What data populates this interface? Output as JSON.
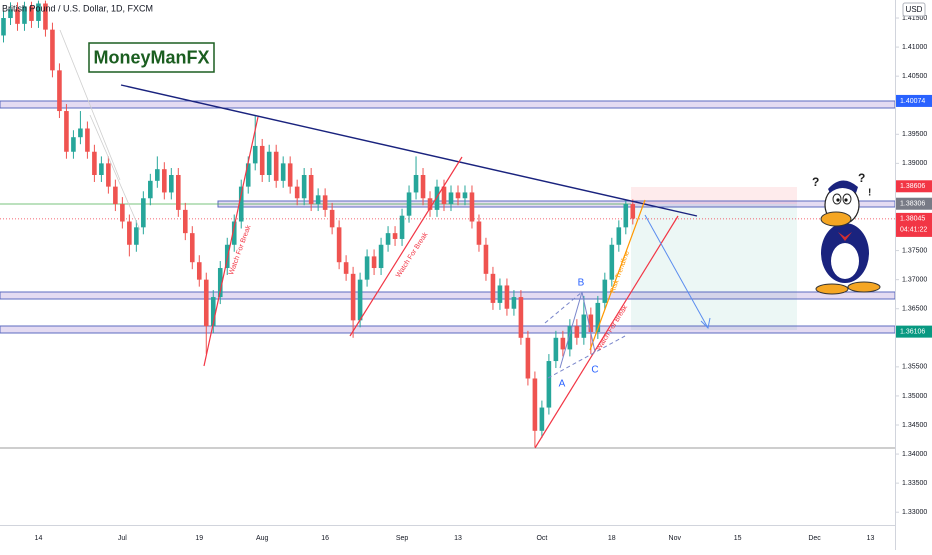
{
  "chart_data": {
    "type": "candlestick",
    "title": "British Pound / U.S. Dollar, 1D, FXCM",
    "currency": "USD",
    "logo": "MoneyManFX",
    "annotations": [
      "Watch For Break",
      "Watch For Break",
      "Watch For Break",
      "Risk Trendline",
      "A",
      "B",
      "C"
    ],
    "categories": [
      null,
      null,
      null,
      null,
      null,
      "14",
      null,
      null,
      null,
      null,
      null,
      null,
      null,
      null,
      null,
      null,
      null,
      "Jul",
      null,
      null,
      null,
      null,
      null,
      null,
      null,
      null,
      null,
      null,
      "19",
      null,
      null,
      null,
      null,
      null,
      null,
      null,
      null,
      "Aug",
      null,
      null,
      null,
      null,
      null,
      null,
      null,
      null,
      "16",
      null,
      null,
      null,
      null,
      null,
      null,
      null,
      null,
      null,
      null,
      "Sep",
      null,
      null,
      null,
      null,
      null,
      null,
      null,
      "13",
      null,
      null,
      null,
      null,
      null,
      null,
      null,
      null,
      null,
      null,
      null,
      "Oct",
      null,
      null,
      null,
      null,
      null,
      null,
      null,
      null,
      null,
      "18",
      null,
      null,
      null,
      null,
      null,
      null,
      null,
      null,
      "Nov",
      null,
      null,
      null,
      null,
      null,
      null,
      null,
      null,
      "15",
      null,
      null,
      null,
      null,
      null,
      null,
      null,
      null,
      null,
      null,
      "Dec",
      null,
      null,
      null,
      null,
      null,
      null,
      null,
      "13",
      null,
      null,
      null
    ],
    "open": [
      1.412,
      1.415,
      1.4165,
      1.414,
      1.417,
      1.4145,
      1.4175,
      1.413,
      1.406,
      1.399,
      1.392,
      1.3945,
      1.396,
      1.392,
      1.388,
      1.39,
      1.386,
      1.383,
      1.38,
      1.376,
      1.379,
      1.384,
      1.387,
      1.389,
      1.385,
      1.388,
      1.382,
      1.378,
      1.373,
      1.37,
      1.362,
      1.367,
      1.372,
      1.376,
      1.38,
      1.386,
      1.39,
      1.393,
      1.388,
      1.392,
      1.387,
      1.39,
      1.386,
      1.384,
      1.388,
      1.383,
      1.3845,
      1.382,
      1.379,
      1.373,
      1.371,
      1.363,
      1.37,
      1.374,
      1.372,
      1.376,
      1.378,
      1.377,
      1.381,
      1.385,
      1.388,
      1.384,
      1.382,
      1.386,
      1.383,
      1.385,
      1.384,
      1.385,
      1.38,
      1.376,
      1.371,
      1.366,
      1.369,
      1.365,
      1.367,
      1.36,
      1.353,
      1.344,
      1.348,
      1.356,
      1.36,
      1.358,
      1.362,
      1.36,
      1.364,
      1.361,
      1.366,
      1.37,
      1.376,
      1.379,
      1.383,
      null,
      null,
      null,
      null,
      null,
      null,
      null,
      null,
      null,
      null,
      null,
      null,
      null,
      null,
      null,
      null,
      null,
      null,
      null,
      null,
      null,
      null,
      null,
      null,
      null,
      null,
      null,
      null,
      null,
      null,
      null,
      null,
      null,
      null,
      null,
      null,
      null
    ],
    "high": [
      1.4162,
      1.4177,
      1.4177,
      1.4178,
      1.4178,
      1.418,
      1.418,
      1.4142,
      1.4072,
      1.4002,
      1.3957,
      1.399,
      1.3972,
      1.3932,
      1.3912,
      1.3912,
      1.3872,
      1.3842,
      1.3812,
      1.3802,
      1.3852,
      1.3882,
      1.3912,
      1.3902,
      1.3892,
      1.3892,
      1.3832,
      1.3792,
      1.3742,
      1.3712,
      1.3682,
      1.3732,
      1.3772,
      1.3812,
      1.3872,
      1.3912,
      1.3983,
      1.3942,
      1.3932,
      1.3932,
      1.3912,
      1.3912,
      1.3872,
      1.3892,
      1.3892,
      1.3857,
      1.3857,
      1.3832,
      1.3802,
      1.3742,
      1.3722,
      1.3712,
      1.3752,
      1.3752,
      1.3772,
      1.3792,
      1.3792,
      1.3822,
      1.3862,
      1.3912,
      1.3892,
      1.3852,
      1.3872,
      1.3872,
      1.3862,
      1.3862,
      1.3862,
      1.3862,
      1.3812,
      1.3772,
      1.3722,
      1.3702,
      1.3702,
      1.3682,
      1.3682,
      1.3612,
      1.3542,
      1.3492,
      1.3572,
      1.3612,
      1.3612,
      1.3632,
      1.3632,
      1.3672,
      1.3652,
      1.3672,
      1.3712,
      1.3772,
      1.3802,
      1.3838,
      1.3838,
      null,
      null,
      null,
      null,
      null,
      null,
      null,
      null,
      null,
      null,
      null,
      null,
      null,
      null,
      null,
      null,
      null,
      null,
      null,
      null,
      null,
      null,
      null,
      null,
      null,
      null,
      null,
      null,
      null,
      null,
      null,
      null,
      null,
      null,
      null,
      null,
      null
    ],
    "low": [
      1.4108,
      1.4138,
      1.4128,
      1.4128,
      1.4133,
      1.4133,
      1.4118,
      1.4048,
      1.3978,
      1.3908,
      1.3908,
      1.3933,
      1.3908,
      1.3868,
      1.3868,
      1.3848,
      1.3818,
      1.3788,
      1.374,
      1.3748,
      1.3778,
      1.3828,
      1.3858,
      1.3838,
      1.3838,
      1.3808,
      1.3768,
      1.3718,
      1.3688,
      1.3572,
      1.3608,
      1.3658,
      1.3708,
      1.3748,
      1.3788,
      1.3848,
      1.3888,
      1.3868,
      1.3868,
      1.3858,
      1.3858,
      1.3848,
      1.3828,
      1.3828,
      1.3818,
      1.3818,
      1.3808,
      1.3778,
      1.3718,
      1.3698,
      1.36,
      1.3618,
      1.3688,
      1.3708,
      1.3708,
      1.3748,
      1.3758,
      1.3758,
      1.3798,
      1.3838,
      1.3828,
      1.3808,
      1.3808,
      1.3818,
      1.3818,
      1.3828,
      1.3828,
      1.3788,
      1.3748,
      1.3698,
      1.3648,
      1.3648,
      1.3638,
      1.3638,
      1.3588,
      1.3518,
      1.3412,
      1.3428,
      1.3468,
      1.3548,
      1.3568,
      1.3568,
      1.3588,
      1.3588,
      1.3572,
      1.3598,
      1.3648,
      1.3688,
      1.3748,
      1.3778,
      1.3795,
      null,
      null,
      null,
      null,
      null,
      null,
      null,
      null,
      null,
      null,
      null,
      null,
      null,
      null,
      null,
      null,
      null,
      null,
      null,
      null,
      null,
      null,
      null,
      null,
      null,
      null,
      null,
      null,
      null,
      null,
      null,
      null,
      null,
      null,
      null,
      null,
      null
    ],
    "close": [
      1.415,
      1.4165,
      1.414,
      1.417,
      1.4145,
      1.4175,
      1.413,
      1.406,
      1.399,
      1.392,
      1.3945,
      1.396,
      1.392,
      1.388,
      1.39,
      1.386,
      1.383,
      1.38,
      1.376,
      1.379,
      1.384,
      1.387,
      1.389,
      1.385,
      1.388,
      1.382,
      1.378,
      1.373,
      1.37,
      1.362,
      1.367,
      1.372,
      1.376,
      1.38,
      1.386,
      1.39,
      1.393,
      1.388,
      1.392,
      1.387,
      1.39,
      1.386,
      1.384,
      1.388,
      1.383,
      1.3845,
      1.382,
      1.379,
      1.373,
      1.371,
      1.363,
      1.37,
      1.374,
      1.372,
      1.376,
      1.378,
      1.377,
      1.381,
      1.385,
      1.388,
      1.384,
      1.382,
      1.386,
      1.383,
      1.385,
      1.384,
      1.385,
      1.38,
      1.376,
      1.371,
      1.366,
      1.369,
      1.365,
      1.367,
      1.36,
      1.353,
      1.344,
      1.348,
      1.356,
      1.36,
      1.358,
      1.362,
      1.36,
      1.364,
      1.361,
      1.366,
      1.37,
      1.376,
      1.379,
      1.383,
      1.3805,
      null,
      null,
      null,
      null,
      null,
      null,
      null,
      null,
      null,
      null,
      null,
      null,
      null,
      null,
      null,
      null,
      null,
      null,
      null,
      null,
      null,
      null,
      null,
      null,
      null,
      null,
      null,
      null,
      null,
      null,
      null,
      null,
      null,
      null,
      null,
      null,
      null
    ],
    "up_color": "#26a69a",
    "down_color": "#ef5350",
    "ylim": [
      1.3278,
      1.4181
    ],
    "yticks": [
      {
        "value": 1.415,
        "label": "1.41500"
      },
      {
        "value": 1.41,
        "label": "1.41000"
      },
      {
        "value": 1.405,
        "label": "1.40500"
      },
      {
        "value": 1.395,
        "label": "1.39500"
      },
      {
        "value": 1.39,
        "label": "1.39000"
      },
      {
        "value": 1.375,
        "label": "1.37500"
      },
      {
        "value": 1.37,
        "label": "1.37000"
      },
      {
        "value": 1.365,
        "label": "1.36500"
      },
      {
        "value": 1.355,
        "label": "1.35500"
      },
      {
        "value": 1.35,
        "label": "1.35000"
      },
      {
        "value": 1.345,
        "label": "1.34500"
      },
      {
        "value": 1.34,
        "label": "1.34000"
      },
      {
        "value": 1.335,
        "label": "1.33500"
      },
      {
        "value": 1.33,
        "label": "1.33000"
      }
    ],
    "grid": false,
    "price_labels": [
      1.40074,
      1.38606,
      1.38306,
      1.38045,
      1.36106
    ],
    "price_label_colors": [
      "#2962ff",
      "#f23645",
      "#787b86",
      "#f23645",
      "#089981"
    ],
    "countdown": "04:41:22"
  }
}
